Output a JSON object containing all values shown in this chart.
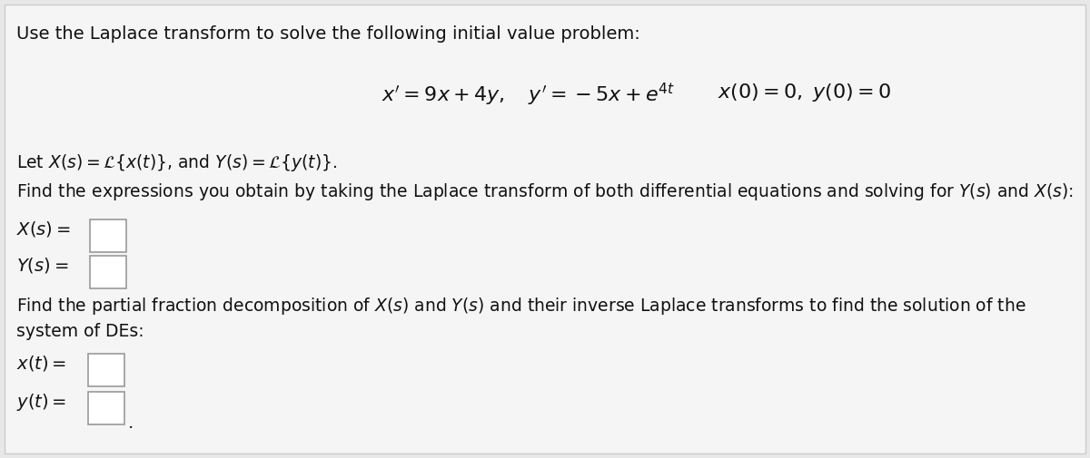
{
  "bg_color": "#e8e8e8",
  "page_bg": "#f5f5f5",
  "title_text": "Use the Laplace transform to solve the following initial value problem:",
  "font_size_title": 14,
  "font_size_eq": 16,
  "font_size_body": 13.5,
  "font_size_labels": 14,
  "box_color": "#ffffff",
  "box_edge_color": "#999999",
  "text_color": "#111111",
  "eq_part1": "$x' = 9x + 4y, \\quad y' = -5x + e^{4t}$",
  "eq_part2": "$x(0) = 0, \\; y(0) = 0$"
}
